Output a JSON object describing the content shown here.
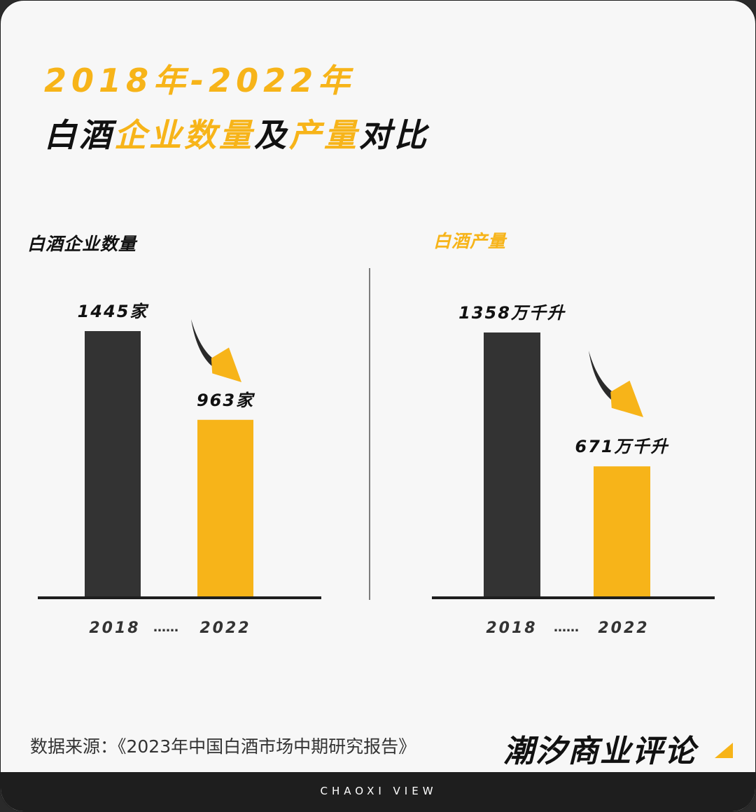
{
  "title": {
    "line1": "2018年-2022年",
    "line2_parts": [
      "白酒",
      "企业数量",
      "及",
      "产量",
      "对比"
    ]
  },
  "colors": {
    "accent": "#f7b419",
    "dark_bar": "#333333",
    "text": "#111111"
  },
  "chart_data": [
    {
      "type": "bar",
      "title": "白酒企业数量",
      "categories": [
        "2018",
        "2022"
      ],
      "values": [
        1445,
        963
      ],
      "value_labels": [
        "1445家",
        "963家"
      ],
      "category_separator": "……",
      "bar_colors": [
        "#333333",
        "#f7b419"
      ],
      "trend": "down"
    },
    {
      "type": "bar",
      "title": "白酒产量",
      "categories": [
        "2018",
        "2022"
      ],
      "values": [
        1358,
        671
      ],
      "value_labels": [
        "1358万千升",
        "671万千升"
      ],
      "category_separator": "……",
      "bar_colors": [
        "#333333",
        "#f7b419"
      ],
      "trend": "down"
    }
  ],
  "source": "数据来源：《2023年中国白酒市场中期研究报告》",
  "brand": {
    "name": "潮汐商业评论",
    "footer": "CHAOXI VIEW"
  }
}
